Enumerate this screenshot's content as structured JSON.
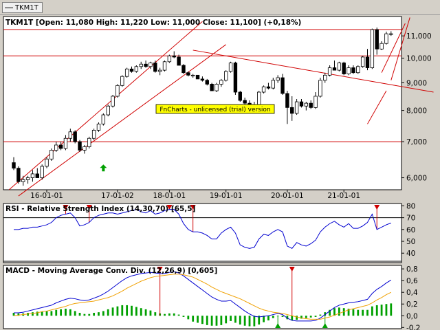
{
  "window": {
    "tab_label": "TKM1T"
  },
  "chart_data": [
    {
      "panel": "price",
      "type": "candlestick",
      "title": "TKM1T [Open: 11,080  High: 11,220  Low: 11,000  Close: 11,100]  (+0,18%)",
      "y_scale": "log",
      "ylim": [
        5700,
        11950
      ],
      "y_ticks": [
        6000,
        7000,
        8000,
        9000,
        10000,
        11000
      ],
      "y_tick_labels": [
        "6,000",
        "7,000",
        "8,000",
        "9,000",
        "10,000",
        "11,000"
      ],
      "x_tick_labels": [
        {
          "label": "16-01-01",
          "index": 7
        },
        {
          "label": "17-01-02",
          "index": 22
        },
        {
          "label": "18-01-01",
          "index": 33
        },
        {
          "label": "19-01-01",
          "index": 45
        },
        {
          "label": "20-01-01",
          "index": 58
        },
        {
          "label": "21-01-01",
          "index": 70
        }
      ],
      "candles": [
        [
          6400,
          6550,
          6200,
          6250
        ],
        [
          6250,
          6300,
          5850,
          5900
        ],
        [
          5900,
          6050,
          5800,
          5950
        ],
        [
          5950,
          6050,
          5850,
          6000
        ],
        [
          6000,
          6200,
          5900,
          6100
        ],
        [
          6100,
          6250,
          6000,
          6000
        ],
        [
          6000,
          6350,
          5950,
          6300
        ],
        [
          6300,
          6550,
          6250,
          6500
        ],
        [
          6500,
          6800,
          6450,
          6750
        ],
        [
          6750,
          7000,
          6700,
          6900
        ],
        [
          6900,
          7000,
          6750,
          6800
        ],
        [
          6800,
          7200,
          6750,
          7100
        ],
        [
          7100,
          7400,
          7000,
          7300
        ],
        [
          7300,
          7350,
          6950,
          7000
        ],
        [
          7000,
          7050,
          6700,
          6750
        ],
        [
          6750,
          6900,
          6650,
          6850
        ],
        [
          6850,
          7150,
          6800,
          7100
        ],
        [
          7100,
          7400,
          7050,
          7350
        ],
        [
          7350,
          7600,
          7300,
          7550
        ],
        [
          7550,
          7900,
          7500,
          7850
        ],
        [
          7850,
          8200,
          7800,
          8150
        ],
        [
          8150,
          8550,
          8100,
          8500
        ],
        [
          8500,
          8950,
          8450,
          8900
        ],
        [
          8900,
          9300,
          8850,
          9250
        ],
        [
          9250,
          9600,
          9200,
          9550
        ],
        [
          9550,
          9650,
          9400,
          9450
        ],
        [
          9450,
          9700,
          9400,
          9650
        ],
        [
          9650,
          9850,
          9550,
          9750
        ],
        [
          9750,
          9900,
          9600,
          9650
        ],
        [
          9650,
          9850,
          9550,
          9800
        ],
        [
          9800,
          9900,
          9400,
          9450
        ],
        [
          9450,
          9600,
          9300,
          9500
        ],
        [
          9500,
          9900,
          9450,
          9850
        ],
        [
          9850,
          10150,
          9800,
          10100
        ],
        [
          10100,
          10300,
          10000,
          10050
        ],
        [
          10050,
          10150,
          9700,
          9700
        ],
        [
          9700,
          9750,
          9350,
          9400
        ],
        [
          9400,
          9450,
          9250,
          9300
        ],
        [
          9300,
          9350,
          9200,
          9300
        ],
        [
          9300,
          9300,
          9150,
          9150
        ],
        [
          9150,
          9250,
          9050,
          9100
        ],
        [
          9100,
          9150,
          8900,
          8950
        ],
        [
          8950,
          9000,
          8700,
          8700
        ],
        [
          8700,
          9000,
          8650,
          8950
        ],
        [
          8950,
          9150,
          8850,
          9100
        ],
        [
          9100,
          9500,
          9050,
          9450
        ],
        [
          9450,
          9850,
          9400,
          9800
        ],
        [
          9800,
          9850,
          8550,
          8650
        ],
        [
          8650,
          8700,
          8300,
          8350
        ],
        [
          8350,
          8450,
          8150,
          8250
        ],
        [
          8250,
          8350,
          8050,
          8100
        ],
        [
          8100,
          8300,
          7950,
          8200
        ],
        [
          8200,
          8700,
          8150,
          8650
        ],
        [
          8650,
          8900,
          8600,
          8850
        ],
        [
          8850,
          9000,
          8750,
          8800
        ],
        [
          8800,
          9200,
          8750,
          9100
        ],
        [
          9100,
          9300,
          9000,
          9200
        ],
        [
          9200,
          9350,
          8550,
          8600
        ],
        [
          8600,
          8700,
          7550,
          8100
        ],
        [
          8100,
          8500,
          7650,
          7900
        ],
        [
          7900,
          8400,
          7850,
          8300
        ],
        [
          8300,
          8400,
          8100,
          8150
        ],
        [
          8150,
          8300,
          8000,
          8250
        ],
        [
          8250,
          8350,
          8050,
          8100
        ],
        [
          8100,
          8650,
          8050,
          8500
        ],
        [
          8500,
          9200,
          8450,
          9100
        ],
        [
          9100,
          9400,
          9000,
          9300
        ],
        [
          9300,
          9700,
          9250,
          9600
        ],
        [
          9600,
          9900,
          9550,
          9500
        ],
        [
          9500,
          9850,
          9450,
          9800
        ],
        [
          9800,
          9850,
          9300,
          9350
        ],
        [
          9350,
          9700,
          9300,
          9600
        ],
        [
          9600,
          9700,
          9350,
          9400
        ],
        [
          9400,
          9700,
          9350,
          9650
        ],
        [
          9650,
          10100,
          9600,
          10050
        ],
        [
          10050,
          10400,
          9500,
          9600
        ],
        [
          9600,
          11350,
          9550,
          11300
        ],
        [
          11300,
          11400,
          10150,
          10400
        ],
        [
          10400,
          10750,
          10350,
          10650
        ],
        [
          10650,
          11200,
          10600,
          11100
        ],
        [
          11080,
          11220,
          11000,
          11100
        ]
      ],
      "horizontal_lines": [
        7000,
        10100,
        11300
      ],
      "trend_lines": [
        {
          "from": [
            -1,
            5700
          ],
          "to": [
            40,
            11700
          ]
        },
        {
          "from": [
            1,
            5550
          ],
          "to": [
            45,
            10600
          ]
        },
        {
          "from": [
            38,
            10350
          ],
          "to": [
            89,
            8650
          ]
        },
        {
          "from": [
            75,
            7550
          ],
          "to": [
            79,
            8700
          ]
        },
        {
          "from": [
            80,
            9100
          ],
          "to": [
            84,
            11900
          ]
        },
        {
          "from": [
            78,
            9400
          ],
          "to": [
            83,
            11600
          ]
        }
      ],
      "arrows": [
        {
          "index": 19,
          "value": 6350,
          "direction": "up",
          "color": "#00a000"
        }
      ],
      "watermark": "FnCharts - unlicensed (trial) version"
    },
    {
      "panel": "rsi",
      "type": "line",
      "title": "RSI - Relative Strength Index (14,30,70) [65,5]",
      "ylim": [
        32,
        82
      ],
      "y_ticks": [
        40,
        50,
        60,
        70,
        80
      ],
      "y_tick_labels": [
        "40",
        "50",
        "60",
        "70",
        "80"
      ],
      "horizontal_lines": [
        70,
        30
      ],
      "series": [
        {
          "color": "#0000d0",
          "values": [
            60,
            60,
            61,
            61,
            62,
            62,
            63,
            64,
            66,
            70,
            72,
            73,
            74,
            70,
            63,
            64,
            66,
            70,
            72,
            73,
            74,
            74,
            73,
            74,
            75,
            76,
            77,
            75,
            74,
            76,
            73,
            74,
            76,
            77,
            77,
            73,
            65,
            60,
            58,
            58,
            57,
            55,
            52,
            52,
            57,
            60,
            62,
            57,
            47,
            45,
            44,
            45,
            52,
            56,
            55,
            58,
            60,
            58,
            46,
            44,
            49,
            47,
            46,
            48,
            51,
            58,
            62,
            65,
            67,
            64,
            62,
            65,
            61,
            61,
            63,
            66,
            73,
            60,
            62,
            64,
            65.5
          ]
        }
      ],
      "markers": [
        {
          "index": 11,
          "value": 78,
          "direction": "down",
          "color": "#d00000"
        },
        {
          "index": 16,
          "value": 78,
          "direction": "down",
          "color": "#d00000"
        },
        {
          "index": 33,
          "value": 78,
          "direction": "down",
          "color": "#d00000"
        },
        {
          "index": 38,
          "value": 78,
          "direction": "down",
          "color": "#d00000"
        },
        {
          "index": 77,
          "value": 78,
          "direction": "down",
          "color": "#d00000"
        }
      ]
    },
    {
      "panel": "macd",
      "type": "bar+line",
      "title": "MACD - Moving Average Conv. Div. (12,26,9) [0,605]",
      "ylim": [
        -0.22,
        0.86
      ],
      "y_ticks": [
        -0.2,
        0,
        0.2,
        0.4,
        0.6,
        0.8
      ],
      "y_tick_labels": [
        "-0,2",
        "0,0",
        "0,2",
        "0,4",
        "0,6",
        "0,8"
      ],
      "series": [
        {
          "name": "MACD",
          "color": "#0000d0",
          "values": [
            0.05,
            0.05,
            0.06,
            0.08,
            0.1,
            0.12,
            0.14,
            0.16,
            0.18,
            0.22,
            0.25,
            0.28,
            0.3,
            0.29,
            0.27,
            0.26,
            0.27,
            0.3,
            0.33,
            0.37,
            0.42,
            0.48,
            0.54,
            0.6,
            0.65,
            0.68,
            0.7,
            0.72,
            0.73,
            0.74,
            0.73,
            0.72,
            0.72,
            0.74,
            0.75,
            0.73,
            0.68,
            0.62,
            0.56,
            0.5,
            0.44,
            0.38,
            0.32,
            0.28,
            0.25,
            0.25,
            0.26,
            0.2,
            0.14,
            0.08,
            0.03,
            -0.01,
            -0.02,
            -0.01,
            0.0,
            0.02,
            0.04,
            0.02,
            -0.04,
            -0.08,
            -0.09,
            -0.09,
            -0.09,
            -0.09,
            -0.08,
            -0.04,
            0.02,
            0.08,
            0.14,
            0.18,
            0.2,
            0.22,
            0.23,
            0.24,
            0.26,
            0.28,
            0.38,
            0.45,
            0.5,
            0.56,
            0.61
          ]
        },
        {
          "name": "Signal",
          "color": "#f0a000",
          "values": [
            0.0,
            0.01,
            0.02,
            0.03,
            0.04,
            0.05,
            0.07,
            0.08,
            0.1,
            0.12,
            0.14,
            0.16,
            0.19,
            0.21,
            0.22,
            0.23,
            0.24,
            0.25,
            0.27,
            0.29,
            0.31,
            0.34,
            0.38,
            0.42,
            0.47,
            0.51,
            0.55,
            0.59,
            0.62,
            0.65,
            0.67,
            0.68,
            0.69,
            0.7,
            0.71,
            0.71,
            0.7,
            0.68,
            0.66,
            0.62,
            0.58,
            0.54,
            0.49,
            0.45,
            0.41,
            0.38,
            0.35,
            0.32,
            0.29,
            0.25,
            0.21,
            0.17,
            0.13,
            0.1,
            0.08,
            0.06,
            0.05,
            0.04,
            0.02,
            0.0,
            -0.02,
            -0.04,
            -0.05,
            -0.06,
            -0.06,
            -0.06,
            -0.04,
            -0.02,
            0.01,
            0.04,
            0.07,
            0.1,
            0.12,
            0.14,
            0.16,
            0.18,
            0.22,
            0.27,
            0.31,
            0.36,
            0.4
          ]
        }
      ],
      "histogram": {
        "color": "#00a000",
        "values": [
          0.05,
          0.04,
          0.04,
          0.05,
          0.06,
          0.07,
          0.07,
          0.08,
          0.08,
          0.1,
          0.11,
          0.12,
          0.11,
          0.08,
          0.05,
          0.03,
          0.03,
          0.05,
          0.06,
          0.08,
          0.11,
          0.14,
          0.16,
          0.18,
          0.18,
          0.17,
          0.15,
          0.13,
          0.11,
          0.09,
          0.06,
          0.04,
          0.03,
          0.04,
          0.04,
          0.02,
          -0.02,
          -0.06,
          -0.1,
          -0.12,
          -0.14,
          -0.16,
          -0.17,
          -0.17,
          -0.16,
          -0.13,
          -0.09,
          -0.12,
          -0.15,
          -0.17,
          -0.18,
          -0.18,
          -0.15,
          -0.11,
          -0.08,
          -0.04,
          -0.01,
          -0.02,
          -0.06,
          -0.08,
          -0.07,
          -0.05,
          -0.04,
          -0.03,
          -0.02,
          0.02,
          0.06,
          0.1,
          0.13,
          0.14,
          0.13,
          0.12,
          0.11,
          0.1,
          0.1,
          0.1,
          0.16,
          0.18,
          0.19,
          0.2,
          0.21
        ]
      },
      "markers": [
        {
          "index": 31,
          "value": 0.84,
          "direction": "down",
          "color": "#d00000"
        },
        {
          "index": 59,
          "value": 0.84,
          "direction": "down",
          "color": "#d00000"
        },
        {
          "index": 56,
          "value": -0.2,
          "direction": "up",
          "color": "#00a000"
        },
        {
          "index": 66,
          "value": -0.2,
          "direction": "up",
          "color": "#00a000"
        }
      ]
    }
  ]
}
